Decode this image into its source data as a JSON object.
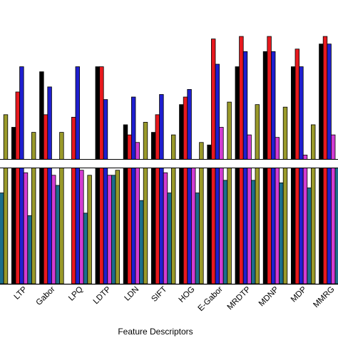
{
  "chart_data": {
    "type": "bar",
    "xlabel": "Feature Descriptors",
    "ylabel": "",
    "title": "",
    "grid": false,
    "legend": "none",
    "axis_break": true,
    "categories": [
      "LBP",
      "LTP",
      "Gabor",
      "LPQ",
      "LDTP",
      "LDN",
      "SIFT",
      "HOG",
      "E-Gabor",
      "MRDTP",
      "MDNP",
      "MDP",
      "MMRG"
    ],
    "category_labels_shown": [
      "e",
      "LTP",
      "Gabor",
      "LPQ",
      "LDTP",
      "LDN",
      "SIFT",
      "HOG",
      "E-Gabor",
      "MRDTP",
      "MDNP",
      "MDP",
      "MMRG"
    ],
    "colors": [
      "#000000",
      "#e8191e",
      "#1f1fd0",
      "#d33cd3",
      "#1c6e8c",
      "#9a9a2a"
    ],
    "series_order_note": "six unnamed series per category",
    "series": [
      {
        "values": [
          null,
          0.62,
          0.84,
          null,
          0.86,
          0.63,
          0.6,
          0.71,
          0.55,
          0.86,
          0.92,
          0.86,
          0.95
        ]
      },
      {
        "values": [
          null,
          0.76,
          0.67,
          0.66,
          0.86,
          0.59,
          0.67,
          0.74,
          0.97,
          0.98,
          0.98,
          0.93,
          0.98
        ]
      },
      {
        "values": [
          null,
          0.86,
          0.78,
          0.86,
          0.73,
          0.74,
          0.75,
          0.77,
          0.87,
          0.92,
          0.92,
          0.86,
          0.95
        ]
      },
      {
        "values": [
          0.58,
          0.44,
          0.43,
          0.45,
          0.43,
          0.56,
          0.44,
          0.46,
          0.62,
          0.59,
          0.58,
          0.51,
          0.59
        ]
      },
      {
        "values": [
          0.36,
          0.27,
          0.39,
          0.28,
          0.43,
          0.33,
          0.36,
          0.36,
          0.41,
          0.41,
          0.4,
          0.38,
          0.46
        ]
      },
      {
        "values": [
          0.67,
          0.6,
          0.6,
          0.43,
          0.45,
          0.64,
          0.59,
          0.56,
          0.72,
          0.71,
          0.7,
          0.63,
          0.63
        ]
      }
    ]
  }
}
